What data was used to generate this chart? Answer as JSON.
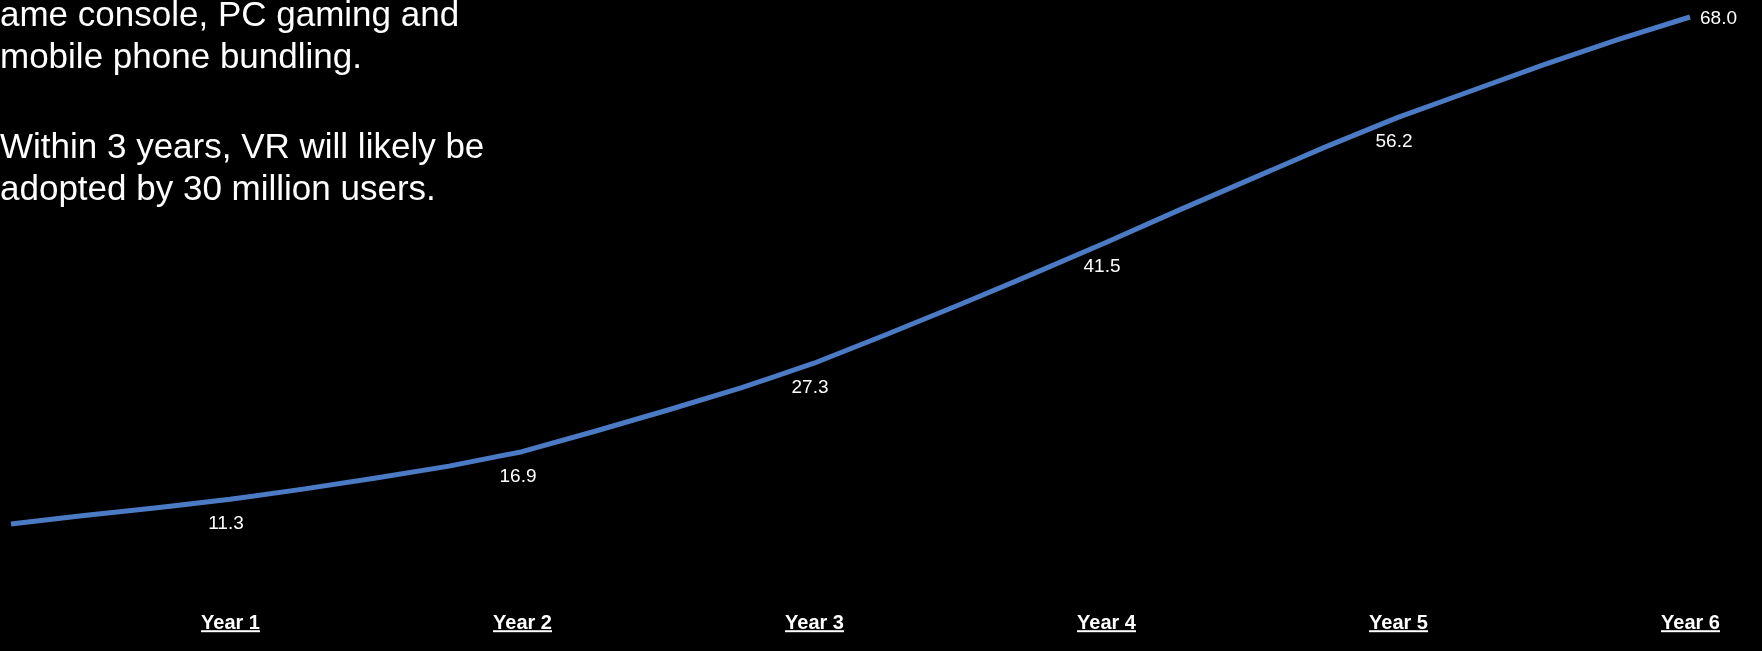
{
  "chart_data": {
    "type": "line",
    "categories": [
      null,
      null,
      null,
      "Year 1",
      null,
      null,
      null,
      "Year 2",
      null,
      null,
      null,
      "Year 3",
      null,
      null,
      null,
      "Year 4",
      null,
      null,
      null,
      "Year 5",
      null,
      null,
      null,
      "Year 6"
    ],
    "series": [
      {
        "color": "#4a7bc4",
        "values": [
          8.4,
          9.4,
          10.3,
          11.3,
          12.5,
          13.8,
          15.2,
          16.9,
          19.3,
          21.8,
          24.4,
          27.3,
          30.7,
          34.2,
          37.8,
          41.5,
          45.3,
          49.0,
          52.7,
          56.2,
          59.3,
          62.4,
          65.3,
          68.0
        ],
        "value_labels": [
          null,
          null,
          null,
          "11.3",
          null,
          null,
          null,
          "16.9",
          null,
          null,
          null,
          "27.3",
          null,
          null,
          null,
          "41.5",
          null,
          null,
          null,
          "56.2",
          null,
          null,
          null,
          "68.0"
        ]
      }
    ],
    "tick_labels": "x",
    "grid": false,
    "marker": "none",
    "line_style": "solid",
    "annotations": [
      "ame console, PC gaming and mobile phone bundling.",
      "Within 3 years, VR will likely be adopted by 30 million users."
    ]
  }
}
